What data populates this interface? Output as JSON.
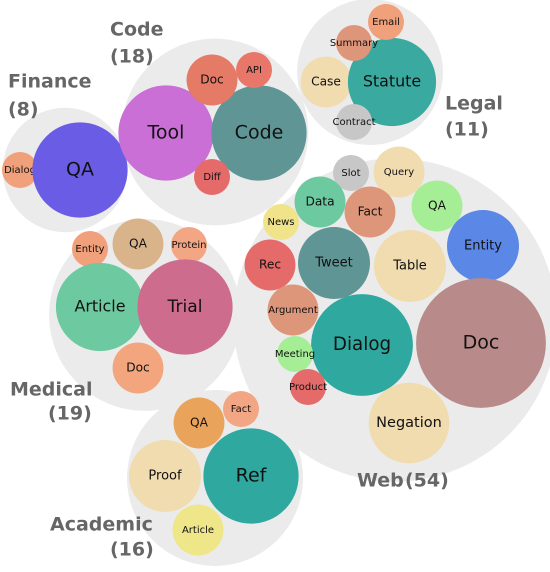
{
  "chart_data": {
    "type": "packed-bubble",
    "groups": [
      {
        "name": "Finance",
        "total": 8,
        "total_label": "(8)",
        "items": [
          {
            "label": "Dialog",
            "value": 1,
            "color": "#f0a07a"
          },
          {
            "label": "QA",
            "value": 7,
            "color": "#6b5ce6"
          }
        ]
      },
      {
        "name": "Code",
        "total": 18,
        "total_label": "(18)",
        "items": [
          {
            "label": "Tool",
            "value": 7,
            "color": "#c96fd6"
          },
          {
            "label": "Code",
            "value": 7,
            "color": "#5f9595"
          },
          {
            "label": "Doc",
            "value": 2,
            "color": "#e57a66"
          },
          {
            "label": "API",
            "value": 1,
            "color": "#e8776a"
          },
          {
            "label": "Diff",
            "value": 1,
            "color": "#e56a6a"
          }
        ]
      },
      {
        "name": "Legal",
        "total": 11,
        "total_label": "(11)",
        "items": [
          {
            "label": "Case",
            "value": 2,
            "color": "#f1dcb0"
          },
          {
            "label": "Statute",
            "value": 6,
            "color": "#3aa9a0"
          },
          {
            "label": "Summary",
            "value": 1,
            "color": "#dd967a"
          },
          {
            "label": "Email",
            "value": 1,
            "color": "#f0a07a"
          },
          {
            "label": "Contract",
            "value": 1,
            "color": "#c7c7c7"
          }
        ]
      },
      {
        "name": "Medical",
        "total": 19,
        "total_label": "(19)",
        "items": [
          {
            "label": "QA",
            "value": 2,
            "color": "#d9b48a"
          },
          {
            "label": "Entity",
            "value": 1,
            "color": "#f0a07a"
          },
          {
            "label": "Protein",
            "value": 1,
            "color": "#f2a684"
          },
          {
            "label": "Article",
            "value": 6,
            "color": "#6dc9a0"
          },
          {
            "label": "Trial",
            "value": 7,
            "color": "#cd6c8c"
          },
          {
            "label": "Doc",
            "value": 2,
            "color": "#f3a57e"
          }
        ]
      },
      {
        "name": "Web",
        "total": 54,
        "total_label": "(54)",
        "items": [
          {
            "label": "Slot",
            "value": 1,
            "color": "#c7c7c7"
          },
          {
            "label": "Query",
            "value": 2,
            "color": "#f1dcb0"
          },
          {
            "label": "Data",
            "value": 2,
            "color": "#6dc9a0"
          },
          {
            "label": "Fact",
            "value": 2,
            "color": "#dd967a"
          },
          {
            "label": "News",
            "value": 1,
            "color": "#f0e38a"
          },
          {
            "label": "QA",
            "value": 2,
            "color": "#a6ee95"
          },
          {
            "label": "Entity",
            "value": 4,
            "color": "#5b87e6"
          },
          {
            "label": "Rec",
            "value": 2,
            "color": "#e56a6a"
          },
          {
            "label": "Tweet",
            "value": 4,
            "color": "#5f9595"
          },
          {
            "label": "Table",
            "value": 4,
            "color": "#f1dcb0"
          },
          {
            "label": "Argument",
            "value": 2,
            "color": "#dd967a"
          },
          {
            "label": "Dialog",
            "value": 8,
            "color": "#2fa9a0"
          },
          {
            "label": "Doc",
            "value": 13,
            "color": "#b88a8a"
          },
          {
            "label": "Meeting",
            "value": 1,
            "color": "#a6ee95"
          },
          {
            "label": "Product",
            "value": 1,
            "color": "#e56a6a"
          },
          {
            "label": "Negation",
            "value": 5,
            "color": "#f1dcb0"
          }
        ]
      },
      {
        "name": "Academic",
        "total": 16,
        "total_label": "(16)",
        "items": [
          {
            "label": "QA",
            "value": 2,
            "color": "#e9a35a"
          },
          {
            "label": "Fact",
            "value": 1,
            "color": "#f2a684"
          },
          {
            "label": "Proof",
            "value": 4,
            "color": "#f1dcb0"
          },
          {
            "label": "Ref",
            "value": 7,
            "color": "#2fa9a0"
          },
          {
            "label": "Article",
            "value": 2,
            "color": "#efe68a"
          }
        ]
      }
    ]
  }
}
